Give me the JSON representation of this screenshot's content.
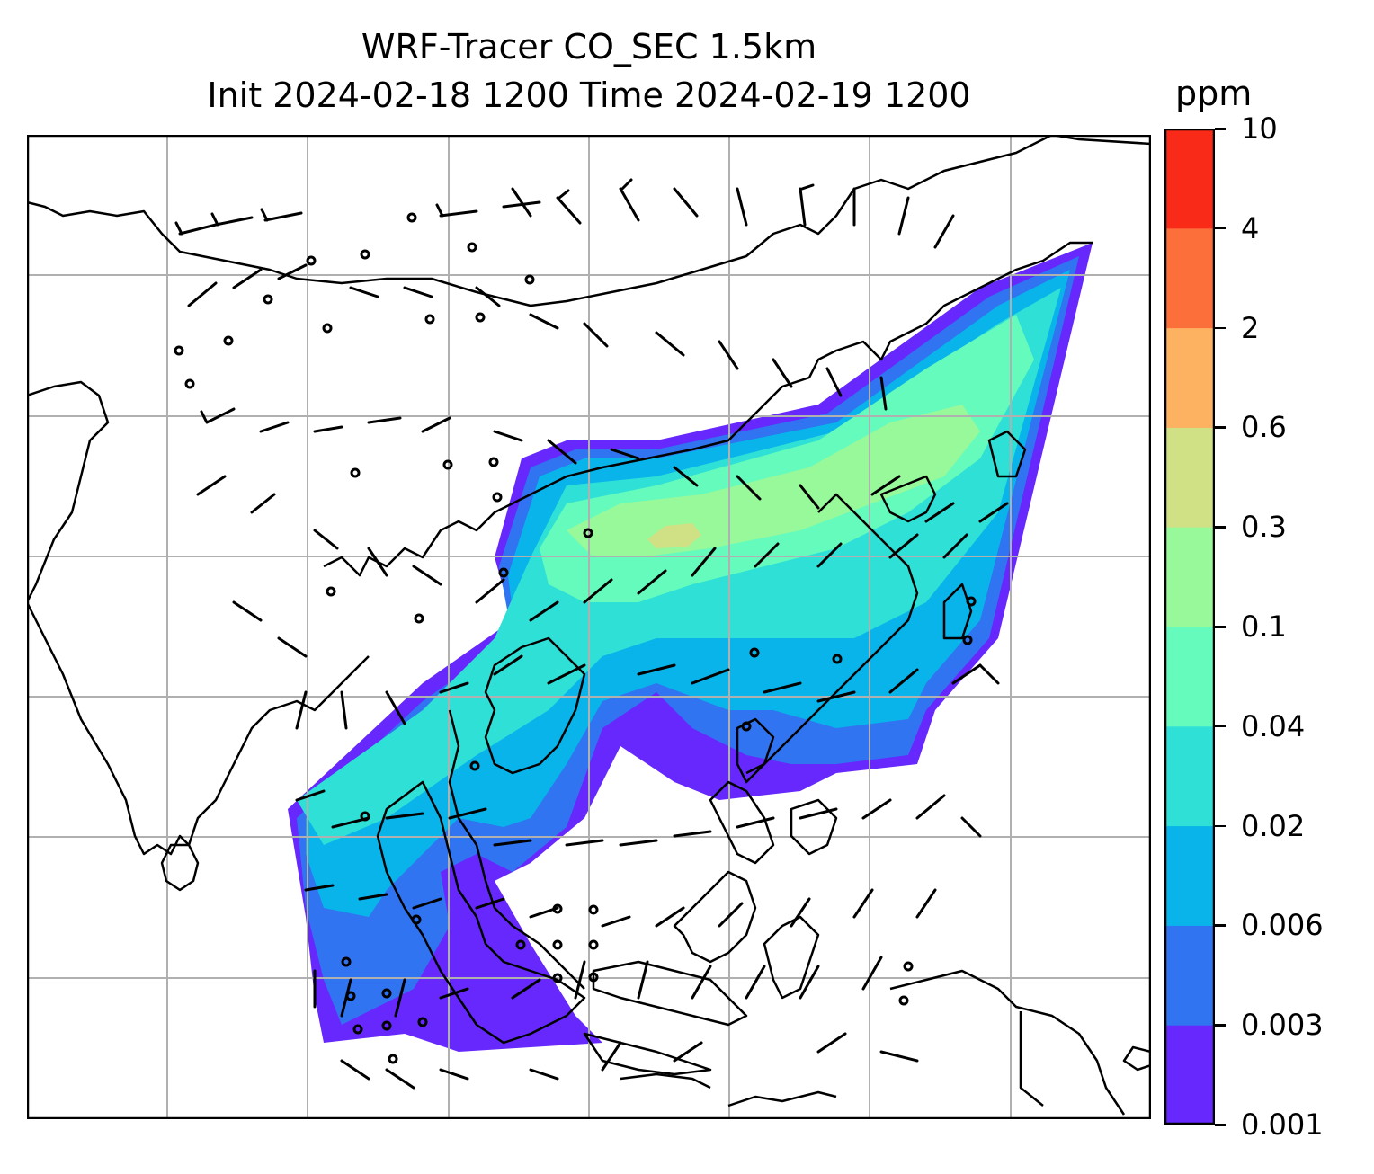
{
  "title_line1": "WRF-Tracer CO_SEC 1.5km",
  "title_line2": "Init 2024-02-18 1200 Time 2024-02-19 1200",
  "colorbar": {
    "unit": "ppm",
    "levels": [
      "0.001",
      "0.003",
      "0.006",
      "0.02",
      "0.04",
      "0.1",
      "0.3",
      "0.6",
      "2",
      "4",
      "10"
    ],
    "colors": [
      "#6628fc",
      "#3074f2",
      "#08b4ea",
      "#2ee0d6",
      "#64fbbc",
      "#98f99a",
      "#d0e084",
      "#fcb260",
      "#fc6e3a",
      "#fa2a18"
    ]
  },
  "map": {
    "variable": "CO_SEC tracer concentration",
    "overlay": "wind barbs",
    "gridlines": true,
    "coastlines": true,
    "border_color": "#000000",
    "grid_color": "#b0b0b0"
  }
}
